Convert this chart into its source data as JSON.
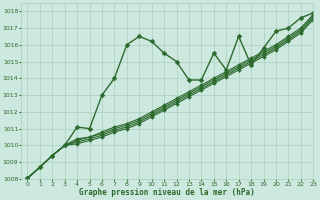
{
  "xlabel": "Graphe pression niveau de la mer (hPa)",
  "ylim": [
    1008,
    1018.5
  ],
  "xlim": [
    -0.5,
    23
  ],
  "yticks": [
    1008,
    1009,
    1010,
    1011,
    1012,
    1013,
    1014,
    1015,
    1016,
    1017,
    1018
  ],
  "xticks": [
    0,
    1,
    2,
    3,
    4,
    5,
    6,
    7,
    8,
    9,
    10,
    11,
    12,
    13,
    14,
    15,
    16,
    17,
    18,
    19,
    20,
    21,
    22,
    23
  ],
  "bg_color": "#cce8df",
  "grid_color": "#aacfbf",
  "line_color": "#2d6a2d",
  "series": [
    [
      1008.05,
      1008.7,
      1009.4,
      1010.0,
      1011.1,
      1011.0,
      1013.0,
      1014.0,
      1016.0,
      1016.5,
      1016.2,
      1015.5,
      1015.0,
      1013.9,
      1013.9,
      1015.5,
      1014.5,
      1016.5,
      1014.8,
      1015.8,
      1016.8,
      1017.0,
      1017.6,
      1017.9
    ],
    [
      1008.05,
      1008.7,
      1009.4,
      1010.0,
      1010.4,
      1010.5,
      1010.8,
      1011.1,
      1011.3,
      1011.6,
      1012.0,
      1012.4,
      1012.8,
      1013.2,
      1013.6,
      1014.0,
      1014.4,
      1014.8,
      1015.2,
      1015.6,
      1016.0,
      1016.5,
      1017.0,
      1017.8
    ],
    [
      1008.05,
      1008.7,
      1009.4,
      1010.0,
      1010.3,
      1010.5,
      1010.7,
      1011.0,
      1011.2,
      1011.5,
      1011.9,
      1012.3,
      1012.7,
      1013.1,
      1013.5,
      1013.9,
      1014.3,
      1014.7,
      1015.1,
      1015.5,
      1015.9,
      1016.4,
      1016.9,
      1017.7
    ],
    [
      1008.05,
      1008.7,
      1009.4,
      1010.0,
      1010.2,
      1010.4,
      1010.6,
      1010.9,
      1011.1,
      1011.4,
      1011.8,
      1012.2,
      1012.6,
      1013.0,
      1013.4,
      1013.8,
      1014.2,
      1014.6,
      1015.0,
      1015.4,
      1015.8,
      1016.3,
      1016.8,
      1017.6
    ],
    [
      1008.05,
      1008.7,
      1009.4,
      1010.0,
      1010.1,
      1010.3,
      1010.5,
      1010.8,
      1011.0,
      1011.3,
      1011.7,
      1012.1,
      1012.5,
      1012.9,
      1013.3,
      1013.7,
      1014.1,
      1014.5,
      1014.9,
      1015.3,
      1015.7,
      1016.2,
      1016.7,
      1017.5
    ]
  ],
  "marker_size": 2.5,
  "lw_main": 1.0,
  "lw_smooth": 0.8
}
